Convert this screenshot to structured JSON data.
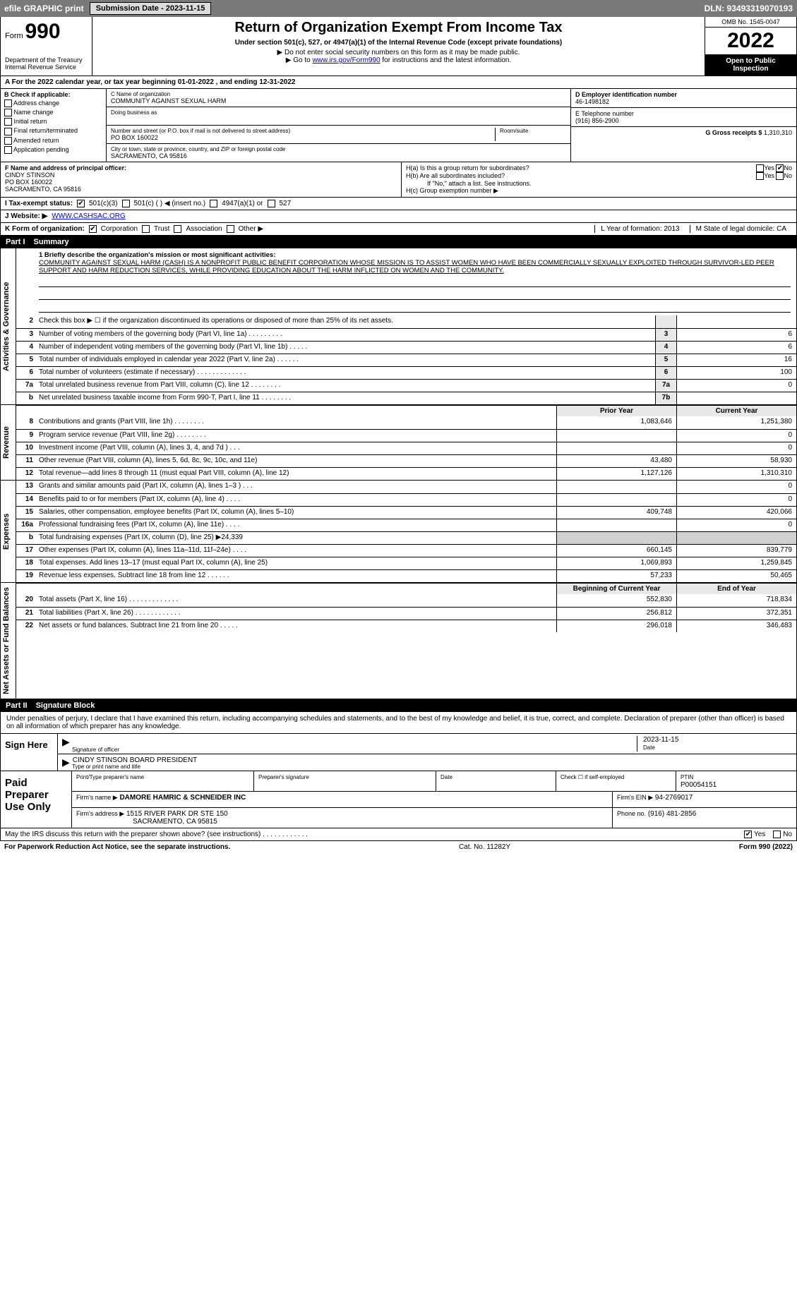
{
  "topbar": {
    "efile_label": "efile GRAPHIC print",
    "submission_label": "Submission Date - 2023-11-15",
    "dln_label": "DLN: 93493319070193"
  },
  "header": {
    "form_prefix": "Form",
    "form_number": "990",
    "title": "Return of Organization Exempt From Income Tax",
    "subtitle": "Under section 501(c), 527, or 4947(a)(1) of the Internal Revenue Code (except private foundations)",
    "note1": "▶ Do not enter social security numbers on this form as it may be made public.",
    "note2_pre": "▶ Go to ",
    "note2_link": "www.irs.gov/Form990",
    "note2_post": " for instructions and the latest information.",
    "dept": "Department of the Treasury\nInternal Revenue Service",
    "omb": "OMB No. 1545-0047",
    "year": "2022",
    "open": "Open to Public Inspection"
  },
  "row_a": {
    "text": "A For the 2022 calendar year, or tax year beginning 01-01-2022   , and ending 12-31-2022"
  },
  "box_b": {
    "title": "B Check if applicable:",
    "opts": [
      "Address change",
      "Name change",
      "Initial return",
      "Final return/terminated",
      "Amended return",
      "Application pending"
    ]
  },
  "box_c": {
    "label": "C Name of organization",
    "name": "COMMUNITY AGAINST SEXUAL HARM",
    "dba_label": "Doing business as",
    "addr_label": "Number and street (or P.O. box if mail is not delivered to street address)",
    "room_label": "Room/suite",
    "addr": "PO BOX 160022",
    "city_label": "City or town, state or province, country, and ZIP or foreign postal code",
    "city": "SACRAMENTO, CA  95816"
  },
  "box_d": {
    "label": "D Employer identification number",
    "val": "46-1498182"
  },
  "box_e": {
    "label": "E Telephone number",
    "val": "(916) 856-2900"
  },
  "box_g": {
    "label": "G Gross receipts $",
    "val": "1,310,310"
  },
  "box_f": {
    "label": "F Name and address of principal officer:",
    "name": "CINDY STINSON",
    "addr1": "PO BOX 160022",
    "addr2": "SACRAMENTO, CA  95816"
  },
  "box_h": {
    "ha_label": "H(a)  Is this a group return for subordinates?",
    "hb_label": "H(b)  Are all subordinates included?",
    "hb_note": "If \"No,\" attach a list. See instructions.",
    "hc_label": "H(c)  Group exemption number ▶",
    "yes": "Yes",
    "no": "No"
  },
  "row_i": {
    "label": "I  Tax-exempt status:",
    "o1": "501(c)(3)",
    "o2": "501(c) (   ) ◀ (insert no.)",
    "o3": "4947(a)(1) or",
    "o4": "527"
  },
  "row_j": {
    "label": "J  Website: ▶",
    "val": "WWW.CASHSAC.ORG"
  },
  "row_k": {
    "label": "K Form of organization:",
    "o1": "Corporation",
    "o2": "Trust",
    "o3": "Association",
    "o4": "Other ▶"
  },
  "row_l": {
    "l": "L Year of formation: 2013",
    "m": "M State of legal domicile: CA"
  },
  "part1": {
    "num": "Part I",
    "title": "Summary"
  },
  "mission": {
    "line1_label": "1  Briefly describe the organization's mission or most significant activities:",
    "text": "COMMUNITY AGAINST SEXUAL HARM (CASH) IS A NONPROFIT PUBLIC BENEFIT CORPORATION WHOSE MISSION IS TO ASSIST WOMEN WHO HAVE BEEN COMMERCIALLY SEXUALLY EXPLOITED THROUGH SURVIVOR-LED PEER SUPPORT AND HARM REDUCTION SERVICES, WHILE PROVIDING EDUCATION ABOUT THE HARM INFLICTED ON WOMEN AND THE COMMUNITY."
  },
  "gov_lines": [
    {
      "n": "2",
      "t": "Check this box ▶ ☐ if the organization discontinued its operations or disposed of more than 25% of its net assets.",
      "nc": "",
      "v": ""
    },
    {
      "n": "3",
      "t": "Number of voting members of the governing body (Part VI, line 1a)  .   .   .   .   .   .   .   .   .",
      "nc": "3",
      "v": "6"
    },
    {
      "n": "4",
      "t": "Number of independent voting members of the governing body (Part VI, line 1b)   .   .   .   .   .",
      "nc": "4",
      "v": "6"
    },
    {
      "n": "5",
      "t": "Total number of individuals employed in calendar year 2022 (Part V, line 2a)  .   .   .   .   .   .",
      "nc": "5",
      "v": "16"
    },
    {
      "n": "6",
      "t": "Total number of volunteers (estimate if necessary)    .   .   .   .   .   .   .   .   .   .   .   .   .",
      "nc": "6",
      "v": "100"
    },
    {
      "n": "7a",
      "t": "Total unrelated business revenue from Part VIII, column (C), line 12  .   .   .   .   .   .   .   .",
      "nc": "7a",
      "v": "0"
    },
    {
      "n": "b",
      "t": "Net unrelated business taxable income from Form 990-T, Part I, line 11  .   .   .   .   .   .   .   .",
      "nc": "7b",
      "v": ""
    }
  ],
  "col_hdrs": {
    "prior": "Prior Year",
    "current": "Current Year"
  },
  "revenue_lines": [
    {
      "n": "8",
      "t": "Contributions and grants (Part VIII, line 1h)   .   .   .   .   .   .   .   .",
      "p": "1,083,646",
      "c": "1,251,380"
    },
    {
      "n": "9",
      "t": "Program service revenue (Part VIII, line 2g)   .   .   .   .   .   .   .   .",
      "p": "",
      "c": "0"
    },
    {
      "n": "10",
      "t": "Investment income (Part VIII, column (A), lines 3, 4, and 7d )  .   .   .",
      "p": "",
      "c": "0"
    },
    {
      "n": "11",
      "t": "Other revenue (Part VIII, column (A), lines 5, 6d, 8c, 9c, 10c, and 11e)",
      "p": "43,480",
      "c": "58,930"
    },
    {
      "n": "12",
      "t": "Total revenue—add lines 8 through 11 (must equal Part VIII, column (A), line 12)",
      "p": "1,127,126",
      "c": "1,310,310"
    }
  ],
  "expense_lines": [
    {
      "n": "13",
      "t": "Grants and similar amounts paid (Part IX, column (A), lines 1–3 )  .   .   .",
      "p": "",
      "c": "0"
    },
    {
      "n": "14",
      "t": "Benefits paid to or for members (Part IX, column (A), line 4)  .   .   .   .",
      "p": "",
      "c": "0"
    },
    {
      "n": "15",
      "t": "Salaries, other compensation, employee benefits (Part IX, column (A), lines 5–10)",
      "p": "409,748",
      "c": "420,066"
    },
    {
      "n": "16a",
      "t": "Professional fundraising fees (Part IX, column (A), line 11e)  .   .   .   .",
      "p": "",
      "c": "0"
    },
    {
      "n": "b",
      "t": "Total fundraising expenses (Part IX, column (D), line 25) ▶24,339",
      "p": "__gray__",
      "c": "__gray__"
    },
    {
      "n": "17",
      "t": "Other expenses (Part IX, column (A), lines 11a–11d, 11f–24e)   .   .   .   .",
      "p": "660,145",
      "c": "839,779"
    },
    {
      "n": "18",
      "t": "Total expenses. Add lines 13–17 (must equal Part IX, column (A), line 25)",
      "p": "1,069,893",
      "c": "1,259,845"
    },
    {
      "n": "19",
      "t": "Revenue less expenses. Subtract line 18 from line 12  .   .   .   .   .   .",
      "p": "57,233",
      "c": "50,465"
    }
  ],
  "net_hdrs": {
    "begin": "Beginning of Current Year",
    "end": "End of Year"
  },
  "net_lines": [
    {
      "n": "20",
      "t": "Total assets (Part X, line 16)  .   .   .   .   .   .   .   .   .   .   .   .   .",
      "p": "552,830",
      "c": "718,834"
    },
    {
      "n": "21",
      "t": "Total liabilities (Part X, line 26)  .   .   .   .   .   .   .   .   .   .   .   .",
      "p": "256,812",
      "c": "372,351"
    },
    {
      "n": "22",
      "t": "Net assets or fund balances. Subtract line 21 from line 20  .   .   .   .   .",
      "p": "296,018",
      "c": "346,483"
    }
  ],
  "part2": {
    "num": "Part II",
    "title": "Signature Block"
  },
  "sig": {
    "intro": "Under penalties of perjury, I declare that I have examined this return, including accompanying schedules and statements, and to the best of my knowledge and belief, it is true, correct, and complete. Declaration of preparer (other than officer) is based on all information of which preparer has any knowledge.",
    "sign_here": "Sign Here",
    "sig_of_officer": "Signature of officer",
    "date_label": "Date",
    "date_val": "2023-11-15",
    "name_title": "CINDY STINSON  BOARD PRESIDENT",
    "type_label": "Type or print name and title"
  },
  "paid": {
    "label": "Paid Preparer Use Only",
    "h1": "Print/Type preparer's name",
    "h2": "Preparer's signature",
    "h3": "Date",
    "h4": "Check ☐ if self-employed",
    "h5": "PTIN",
    "ptin": "P00054151",
    "firm_name_label": "Firm's name    ▶",
    "firm_name": "DAMORE HAMRIC & SCHNEIDER INC",
    "firm_ein_label": "Firm's EIN ▶",
    "firm_ein": "94-2769017",
    "firm_addr_label": "Firm's address ▶",
    "firm_addr1": "1515 RIVER PARK DR STE 150",
    "firm_addr2": "SACRAMENTO, CA  95815",
    "phone_label": "Phone no.",
    "phone": "(916) 481-2856"
  },
  "footer_q": {
    "text": "May the IRS discuss this return with the preparer shown above? (see instructions)   .   .   .   .   .   .   .   .   .   .   .   .",
    "yes": "Yes",
    "no": "No"
  },
  "bottom": {
    "left": "For Paperwork Reduction Act Notice, see the separate instructions.",
    "center": "Cat. No. 11282Y",
    "right": "Form 990 (2022)"
  },
  "vlabels": {
    "gov": "Activities & Governance",
    "rev": "Revenue",
    "exp": "Expenses",
    "net": "Net Assets or Fund Balances"
  }
}
